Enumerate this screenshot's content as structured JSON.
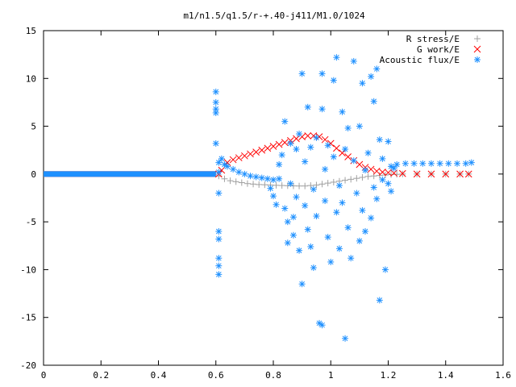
{
  "chart_data": {
    "type": "scatter",
    "title": "m1/n1.5/q1.5/r-+.40-j411/M1.0/1024",
    "xlabel": "",
    "ylabel": "",
    "xlim": [
      0,
      1.6
    ],
    "ylim": [
      -20,
      15
    ],
    "x_ticks": [
      0,
      0.2,
      0.4,
      0.6,
      0.8,
      1,
      1.2,
      1.4,
      1.6
    ],
    "x_tick_labels": [
      "0",
      "0.2",
      "0.4",
      "0.6",
      "0.8",
      "1",
      "1.2",
      "1.4",
      "1.6"
    ],
    "y_ticks": [
      -20,
      -15,
      -10,
      -5,
      0,
      5,
      10,
      15
    ],
    "y_tick_labels": [
      "-20",
      "-15",
      "-10",
      "-5",
      "0",
      "5",
      "10",
      "15"
    ],
    "grid": false,
    "legend_position": "top-right",
    "series": [
      {
        "name": "R stress/E",
        "marker": "plus",
        "color": "#a0a0a0",
        "points": [
          [
            0.61,
            -0.2
          ],
          [
            0.63,
            -0.5
          ],
          [
            0.65,
            -0.7
          ],
          [
            0.67,
            -0.8
          ],
          [
            0.69,
            -0.9
          ],
          [
            0.71,
            -1.0
          ],
          [
            0.73,
            -1.05
          ],
          [
            0.75,
            -1.1
          ],
          [
            0.77,
            -1.12
          ],
          [
            0.79,
            -1.15
          ],
          [
            0.81,
            -1.18
          ],
          [
            0.83,
            -1.2
          ],
          [
            0.85,
            -1.22
          ],
          [
            0.87,
            -1.24
          ],
          [
            0.89,
            -1.25
          ],
          [
            0.91,
            -1.25
          ],
          [
            0.93,
            -1.2
          ],
          [
            0.95,
            -1.15
          ],
          [
            0.97,
            -1.05
          ],
          [
            0.99,
            -0.95
          ],
          [
            1.01,
            -0.85
          ],
          [
            1.03,
            -0.75
          ],
          [
            1.05,
            -0.65
          ],
          [
            1.07,
            -0.55
          ],
          [
            1.09,
            -0.45
          ],
          [
            1.11,
            -0.35
          ],
          [
            1.13,
            -0.25
          ],
          [
            1.15,
            -0.2
          ],
          [
            1.17,
            -0.15
          ],
          [
            1.19,
            -0.1
          ],
          [
            1.21,
            -0.06
          ],
          [
            1.23,
            -0.03
          ],
          [
            1.25,
            0
          ],
          [
            1.3,
            0
          ],
          [
            1.35,
            0
          ],
          [
            1.4,
            0
          ],
          [
            1.45,
            0
          ],
          [
            1.48,
            0
          ]
        ]
      },
      {
        "name": "G work/E",
        "marker": "cross",
        "color": "#ff0000",
        "points": [
          [
            0.61,
            0.0
          ],
          [
            0.62,
            0.4
          ],
          [
            0.64,
            1.2
          ],
          [
            0.66,
            1.5
          ],
          [
            0.68,
            1.7
          ],
          [
            0.7,
            1.9
          ],
          [
            0.72,
            2.1
          ],
          [
            0.74,
            2.3
          ],
          [
            0.76,
            2.5
          ],
          [
            0.78,
            2.7
          ],
          [
            0.8,
            2.9
          ],
          [
            0.82,
            3.1
          ],
          [
            0.84,
            3.3
          ],
          [
            0.86,
            3.5
          ],
          [
            0.88,
            3.7
          ],
          [
            0.9,
            3.9
          ],
          [
            0.92,
            4.0
          ],
          [
            0.94,
            4.0
          ],
          [
            0.96,
            3.9
          ],
          [
            0.98,
            3.6
          ],
          [
            1.0,
            3.2
          ],
          [
            1.02,
            2.7
          ],
          [
            1.04,
            2.2
          ],
          [
            1.06,
            1.8
          ],
          [
            1.08,
            1.4
          ],
          [
            1.1,
            1.0
          ],
          [
            1.12,
            0.7
          ],
          [
            1.14,
            0.5
          ],
          [
            1.16,
            0.3
          ],
          [
            1.18,
            0.2
          ],
          [
            1.2,
            0.15
          ],
          [
            1.22,
            0.1
          ],
          [
            1.25,
            0.05
          ],
          [
            1.3,
            0.0
          ],
          [
            1.35,
            0.0
          ],
          [
            1.4,
            0.0
          ],
          [
            1.45,
            0.0
          ],
          [
            1.48,
            0.0
          ]
        ]
      },
      {
        "name": "Acoustic flux/E",
        "marker": "star",
        "color": "#1e90ff",
        "points": [
          [
            0.6,
            8.6
          ],
          [
            0.6,
            7.5
          ],
          [
            0.6,
            6.8
          ],
          [
            0.6,
            6.4
          ],
          [
            0.6,
            3.2
          ],
          [
            0.61,
            1.2
          ],
          [
            0.61,
            0.2
          ],
          [
            0.61,
            -2.0
          ],
          [
            0.61,
            -6.0
          ],
          [
            0.61,
            -6.8
          ],
          [
            0.61,
            -8.8
          ],
          [
            0.61,
            -9.6
          ],
          [
            0.61,
            -10.5
          ],
          [
            0.62,
            1.6
          ],
          [
            0.63,
            1.0
          ],
          [
            0.64,
            0.8
          ],
          [
            0.66,
            0.5
          ],
          [
            0.68,
            0.2
          ],
          [
            0.7,
            0.0
          ],
          [
            0.72,
            -0.2
          ],
          [
            0.74,
            -0.3
          ],
          [
            0.76,
            -0.4
          ],
          [
            0.78,
            -0.5
          ],
          [
            0.8,
            -0.6
          ],
          [
            0.82,
            -0.5
          ],
          [
            0.79,
            -1.5
          ],
          [
            0.8,
            -2.3
          ],
          [
            0.81,
            -3.2
          ],
          [
            0.82,
            1.0
          ],
          [
            0.83,
            2.0
          ],
          [
            0.84,
            5.5
          ],
          [
            0.84,
            -3.6
          ],
          [
            0.85,
            -5.0
          ],
          [
            0.85,
            -7.2
          ],
          [
            0.86,
            3.2
          ],
          [
            0.86,
            -1.0
          ],
          [
            0.87,
            -4.5
          ],
          [
            0.87,
            -6.4
          ],
          [
            0.88,
            2.6
          ],
          [
            0.88,
            -2.4
          ],
          [
            0.89,
            4.2
          ],
          [
            0.89,
            -8.0
          ],
          [
            0.9,
            10.5
          ],
          [
            0.9,
            -11.5
          ],
          [
            0.91,
            1.3
          ],
          [
            0.91,
            -3.3
          ],
          [
            0.92,
            7.0
          ],
          [
            0.92,
            -5.8
          ],
          [
            0.93,
            2.8
          ],
          [
            0.93,
            -7.6
          ],
          [
            0.94,
            -1.6
          ],
          [
            0.94,
            -9.8
          ],
          [
            0.95,
            3.8
          ],
          [
            0.95,
            -4.4
          ],
          [
            0.96,
            -15.6
          ],
          [
            0.97,
            10.5
          ],
          [
            0.97,
            6.8
          ],
          [
            0.97,
            -15.8
          ],
          [
            0.98,
            0.5
          ],
          [
            0.98,
            -2.8
          ],
          [
            0.99,
            3.0
          ],
          [
            0.99,
            -6.6
          ],
          [
            1.0,
            -9.2
          ],
          [
            1.01,
            9.8
          ],
          [
            1.01,
            1.8
          ],
          [
            1.02,
            12.2
          ],
          [
            1.02,
            -4.0
          ],
          [
            1.03,
            -1.2
          ],
          [
            1.03,
            -7.8
          ],
          [
            1.04,
            6.5
          ],
          [
            1.04,
            -3.0
          ],
          [
            1.05,
            2.6
          ],
          [
            1.05,
            -17.2
          ],
          [
            1.06,
            4.8
          ],
          [
            1.06,
            -5.6
          ],
          [
            1.07,
            -8.8
          ],
          [
            1.08,
            11.8
          ],
          [
            1.08,
            1.4
          ],
          [
            1.09,
            -2.0
          ],
          [
            1.1,
            5.0
          ],
          [
            1.1,
            -7.0
          ],
          [
            1.11,
            9.5
          ],
          [
            1.11,
            -3.8
          ],
          [
            1.12,
            0.4
          ],
          [
            1.12,
            -6.0
          ],
          [
            1.13,
            2.2
          ],
          [
            1.14,
            10.2
          ],
          [
            1.14,
            -4.6
          ],
          [
            1.15,
            7.6
          ],
          [
            1.15,
            -1.4
          ],
          [
            1.16,
            11.0
          ],
          [
            1.16,
            -2.6
          ],
          [
            1.17,
            3.6
          ],
          [
            1.17,
            -13.2
          ],
          [
            1.18,
            -0.6
          ],
          [
            1.18,
            1.6
          ],
          [
            1.19,
            -10.0
          ],
          [
            1.2,
            3.4
          ],
          [
            1.2,
            -1.0
          ],
          [
            1.21,
            0.8
          ],
          [
            1.21,
            -1.8
          ],
          [
            1.22,
            0.6
          ],
          [
            1.23,
            1.0
          ],
          [
            1.26,
            1.1
          ],
          [
            1.29,
            1.1
          ],
          [
            1.32,
            1.1
          ],
          [
            1.35,
            1.1
          ],
          [
            1.38,
            1.1
          ],
          [
            1.41,
            1.1
          ],
          [
            1.44,
            1.1
          ],
          [
            1.47,
            1.1
          ],
          [
            1.49,
            1.2
          ]
        ]
      }
    ]
  }
}
